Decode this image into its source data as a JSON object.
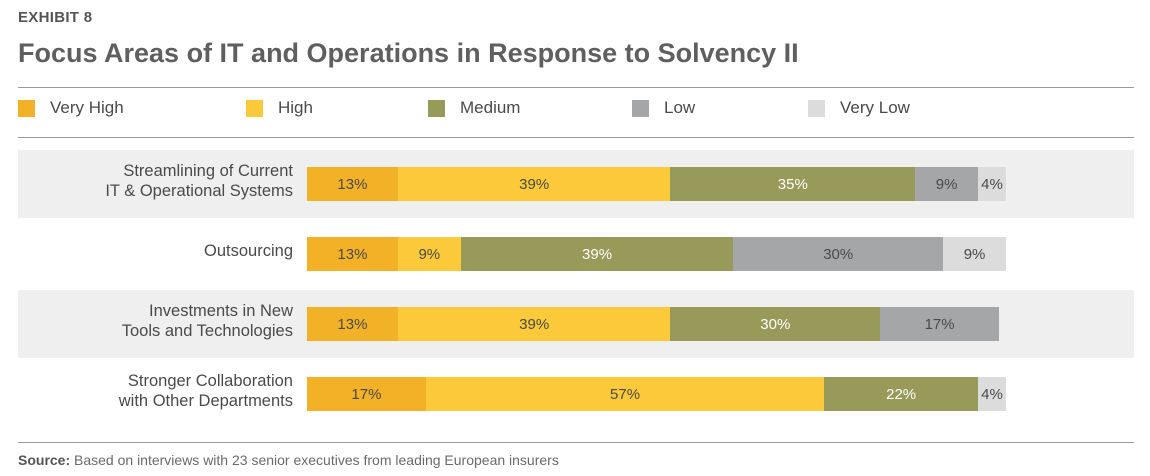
{
  "exhibit_label": "EXHIBIT 8",
  "title": "Focus Areas of IT and Operations in Response to Solvency II",
  "source": {
    "prefix": "Source:",
    "text": "Based on interviews with 23 senior executives from leading European insurers"
  },
  "colors": {
    "very_high": "#f2b127",
    "high": "#fcc93a",
    "medium": "#989a59",
    "low": "#a5a6a8",
    "very_low": "#dcdcdc",
    "band": "#efefef"
  },
  "chart_data": {
    "type": "bar",
    "orientation": "horizontal",
    "stacked": true,
    "legend_position": "top",
    "categories": [
      "Streamlining of Current\nIT & Operational Systems",
      "Outsourcing",
      "Investments in New\nTools and Technologies",
      "Stronger Collaboration\nwith Other Departments"
    ],
    "series": [
      {
        "name": "Very High",
        "color": "#f2b127",
        "values": [
          13,
          13,
          13,
          17
        ]
      },
      {
        "name": "High",
        "color": "#fcc93a",
        "values": [
          39,
          9,
          39,
          57
        ]
      },
      {
        "name": "Medium",
        "color": "#989a59",
        "values": [
          35,
          39,
          30,
          22
        ]
      },
      {
        "name": "Low",
        "color": "#a5a6a8",
        "values": [
          9,
          30,
          17,
          0
        ]
      },
      {
        "name": "Very Low",
        "color": "#dcdcdc",
        "values": [
          4,
          9,
          0,
          4
        ]
      }
    ],
    "value_suffix": "%"
  }
}
